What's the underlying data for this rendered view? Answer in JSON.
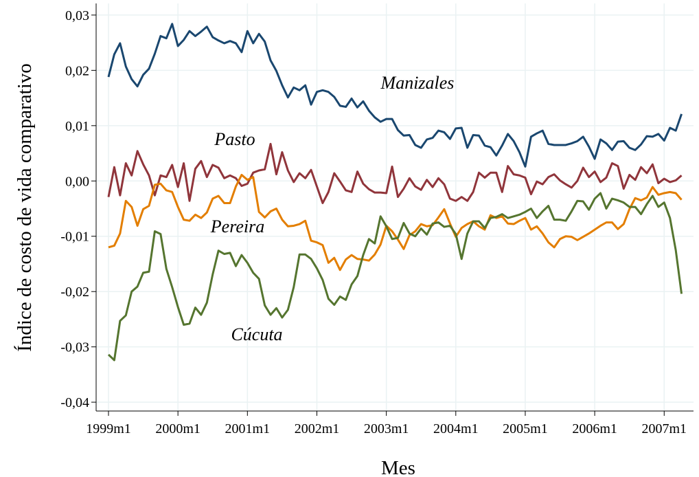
{
  "chart_data": {
    "type": "line",
    "x_label": "Mes",
    "y_label": "Índice de costo de vida comparativo",
    "categories": [
      "1999m1",
      null,
      null,
      null,
      null,
      null,
      null,
      null,
      null,
      null,
      null,
      null,
      "2000m1",
      null,
      null,
      null,
      null,
      null,
      null,
      null,
      null,
      null,
      null,
      null,
      "2001m1",
      null,
      null,
      null,
      null,
      null,
      null,
      null,
      null,
      null,
      null,
      null,
      "2002m1",
      null,
      null,
      null,
      null,
      null,
      null,
      null,
      null,
      null,
      null,
      null,
      "2003m1",
      null,
      null,
      null,
      null,
      null,
      null,
      null,
      null,
      null,
      null,
      null,
      "2004m1",
      null,
      null,
      null,
      null,
      null,
      null,
      null,
      null,
      null,
      null,
      null,
      "2005m1",
      null,
      null,
      null,
      null,
      null,
      null,
      null,
      null,
      null,
      null,
      null,
      "2006m1",
      null,
      null,
      null,
      null,
      null,
      null,
      null,
      null,
      null,
      null,
      null,
      "2007m1",
      null,
      null,
      null
    ],
    "ylim": [
      -0.0416,
      0.0321
    ],
    "yticks": [
      {
        "value": -0.04,
        "label": "-0,04"
      },
      {
        "value": -0.03,
        "label": "-0,03"
      },
      {
        "value": -0.02,
        "label": "-0,02"
      },
      {
        "value": -0.01,
        "label": "-0,01"
      },
      {
        "value": 0,
        "label": "0,00"
      },
      {
        "value": 0.01,
        "label": "0,01"
      },
      {
        "value": 0.02,
        "label": "0,02"
      },
      {
        "value": 0.03,
        "label": "0,03"
      }
    ],
    "grid": true,
    "series": [
      {
        "name": "Manizales",
        "color": "#1a476f",
        "values": [
          0.0188,
          0.0229,
          0.0249,
          0.0207,
          0.0184,
          0.0171,
          0.0192,
          0.0203,
          0.023,
          0.0262,
          0.0258,
          0.0284,
          0.0244,
          0.0255,
          0.0271,
          0.0262,
          0.027,
          0.0279,
          0.026,
          0.0254,
          0.0249,
          0.0253,
          0.0249,
          0.0233,
          0.0271,
          0.0249,
          0.0266,
          0.0252,
          0.0218,
          0.0199,
          0.0173,
          0.0151,
          0.0169,
          0.0164,
          0.0173,
          0.0138,
          0.0161,
          0.0164,
          0.0161,
          0.0152,
          0.0136,
          0.0134,
          0.0149,
          0.0133,
          0.0144,
          0.0127,
          0.0115,
          0.0107,
          0.0112,
          0.0112,
          0.0092,
          0.0082,
          0.0083,
          0.0065,
          0.006,
          0.0075,
          0.0078,
          0.0091,
          0.0088,
          0.0076,
          0.0095,
          0.0096,
          0.006,
          0.0083,
          0.0082,
          0.0064,
          0.0061,
          0.0046,
          0.0064,
          0.0085,
          0.0072,
          0.0052,
          0.0026,
          0.008,
          0.0086,
          0.0091,
          0.0067,
          0.0065,
          0.0065,
          0.0065,
          0.0068,
          0.0072,
          0.008,
          0.0062,
          0.004,
          0.0075,
          0.0068,
          0.0056,
          0.0071,
          0.0072,
          0.006,
          0.0056,
          0.0066,
          0.0081,
          0.008,
          0.0085,
          0.0073,
          0.0096,
          0.0091,
          0.0121
        ]
      },
      {
        "name": "Pasto",
        "color": "#90353b",
        "values": [
          -0.0029,
          0.0025,
          -0.0026,
          0.0032,
          0.001,
          0.0054,
          0.003,
          0.001,
          -0.0026,
          0.001,
          0.0007,
          0.0029,
          -0.0011,
          0.0032,
          -0.0036,
          0.0022,
          0.0036,
          0.0007,
          0.0029,
          0.0024,
          0.0005,
          0.001,
          0.0005,
          -0.0009,
          -0.0005,
          0.0015,
          0.0019,
          0.0021,
          0.0067,
          0.0012,
          0.0052,
          0.0019,
          -0.0002,
          0.0014,
          0.0005,
          0.002,
          -0.001,
          -0.004,
          -0.002,
          0.0014,
          -0.0001,
          -0.0017,
          -0.002,
          0.0017,
          -0.0005,
          -0.0015,
          -0.0021,
          -0.0021,
          -0.0022,
          0.0026,
          -0.0029,
          -0.0014,
          0.0005,
          -0.001,
          -0.0016,
          0.0002,
          -0.0011,
          0.0005,
          -0.0006,
          -0.0032,
          -0.0036,
          -0.0029,
          -0.0036,
          -0.002,
          0.0015,
          0.0006,
          0.0015,
          0.0015,
          -0.002,
          0.0027,
          0.0012,
          0.001,
          0.0006,
          -0.0024,
          -0.0001,
          -0.0006,
          0.0007,
          0.0012,
          0.0001,
          -0.0006,
          -0.0012,
          0.0,
          0.0024,
          0.0007,
          0.0017,
          -0.0002,
          0.0006,
          0.0032,
          0.0027,
          -0.0014,
          0.0011,
          0.0002,
          0.0025,
          0.0014,
          0.003,
          -0.0004,
          0.0004,
          -0.0002,
          0.0001,
          0.001
        ]
      },
      {
        "name": "Pereira",
        "color": "#e37e00",
        "values": [
          -0.012,
          -0.0117,
          -0.0095,
          -0.0036,
          -0.0047,
          -0.0081,
          -0.0051,
          -0.0045,
          -0.0007,
          -0.0005,
          -0.0017,
          -0.002,
          -0.0047,
          -0.007,
          -0.0072,
          -0.0061,
          -0.0067,
          -0.0057,
          -0.0032,
          -0.0027,
          -0.004,
          -0.004,
          -0.001,
          0.0011,
          0.0002,
          0.0007,
          -0.0056,
          -0.0066,
          -0.0055,
          -0.005,
          -0.007,
          -0.0082,
          -0.0081,
          -0.0078,
          -0.0072,
          -0.0108,
          -0.0111,
          -0.0116,
          -0.0148,
          -0.0139,
          -0.0161,
          -0.0142,
          -0.0134,
          -0.0141,
          -0.0142,
          -0.0144,
          -0.0133,
          -0.0115,
          -0.0081,
          -0.0091,
          -0.0106,
          -0.0123,
          -0.0098,
          -0.0091,
          -0.0078,
          -0.0082,
          -0.008,
          -0.0066,
          -0.0051,
          -0.0077,
          -0.0101,
          -0.0085,
          -0.0078,
          -0.0073,
          -0.0082,
          -0.0088,
          -0.0062,
          -0.0067,
          -0.0064,
          -0.0077,
          -0.0078,
          -0.0072,
          -0.0067,
          -0.0088,
          -0.0082,
          -0.0095,
          -0.0111,
          -0.012,
          -0.0105,
          -0.01,
          -0.0101,
          -0.0107,
          -0.0101,
          -0.0095,
          -0.0088,
          -0.0081,
          -0.0075,
          -0.0075,
          -0.0087,
          -0.0078,
          -0.0051,
          -0.0031,
          -0.0035,
          -0.003,
          -0.0011,
          -0.0025,
          -0.0022,
          -0.002,
          -0.0022,
          -0.0034
        ]
      },
      {
        "name": "Cúcuta",
        "color": "#55752f",
        "values": [
          -0.0314,
          -0.0324,
          -0.0253,
          -0.0243,
          -0.02,
          -0.0191,
          -0.0166,
          -0.0164,
          -0.0091,
          -0.0096,
          -0.0159,
          -0.0192,
          -0.0228,
          -0.026,
          -0.0258,
          -0.0229,
          -0.0242,
          -0.022,
          -0.0169,
          -0.0126,
          -0.0132,
          -0.013,
          -0.0154,
          -0.0134,
          -0.0148,
          -0.0166,
          -0.0177,
          -0.0225,
          -0.0242,
          -0.023,
          -0.0247,
          -0.0233,
          -0.0192,
          -0.0133,
          -0.0133,
          -0.0141,
          -0.0158,
          -0.0179,
          -0.0213,
          -0.0224,
          -0.0209,
          -0.0215,
          -0.0187,
          -0.0172,
          -0.0134,
          -0.0105,
          -0.0113,
          -0.0064,
          -0.0082,
          -0.0105,
          -0.0103,
          -0.0076,
          -0.0095,
          -0.01,
          -0.0086,
          -0.0097,
          -0.0077,
          -0.0075,
          -0.0083,
          -0.0081,
          -0.0096,
          -0.0141,
          -0.0095,
          -0.0073,
          -0.0073,
          -0.0085,
          -0.0067,
          -0.0065,
          -0.006,
          -0.0067,
          -0.0064,
          -0.0061,
          -0.0056,
          -0.005,
          -0.0067,
          -0.0055,
          -0.0045,
          -0.007,
          -0.007,
          -0.0072,
          -0.0055,
          -0.0036,
          -0.0037,
          -0.0052,
          -0.0032,
          -0.0022,
          -0.005,
          -0.0032,
          -0.0035,
          -0.0039,
          -0.0047,
          -0.0047,
          -0.006,
          -0.0042,
          -0.0027,
          -0.0047,
          -0.0039,
          -0.0067,
          -0.0125,
          -0.0204
        ]
      }
    ]
  }
}
